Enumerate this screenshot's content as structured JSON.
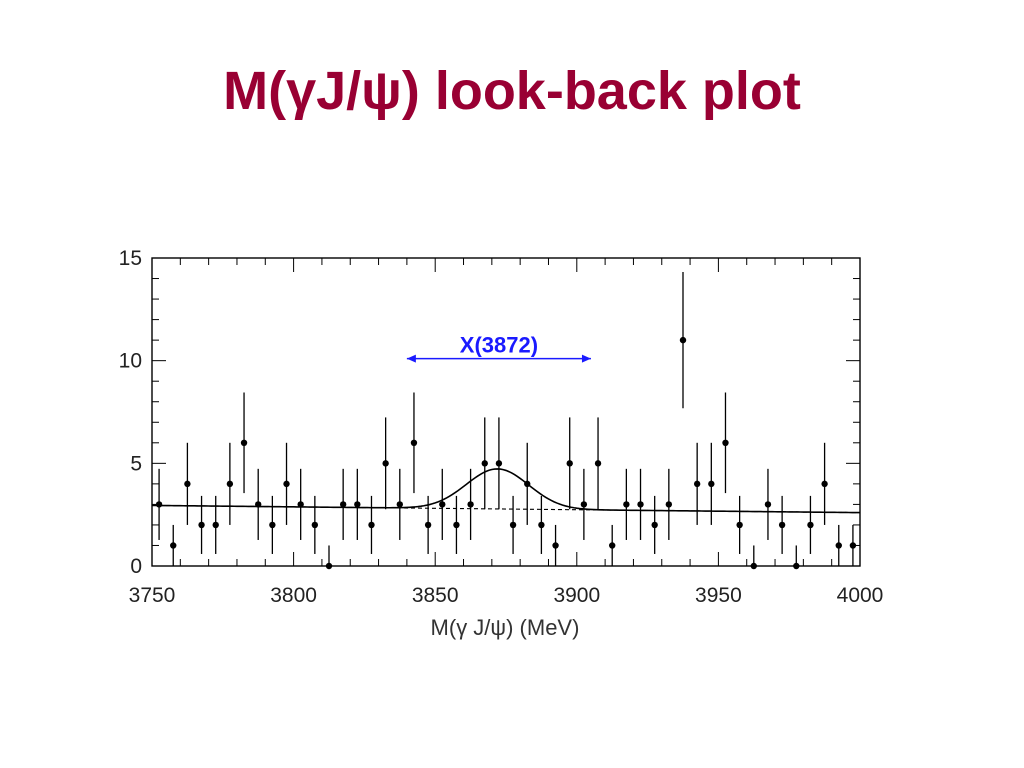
{
  "slide": {
    "title": "M(γJ/ψ) look-back plot",
    "title_color": "#990033"
  },
  "chart_data": {
    "type": "scatter",
    "xlabel": "M(γ J/ψ) (MeV)",
    "ylabel": "",
    "xlim": [
      3750,
      4000
    ],
    "ylim": [
      0,
      15
    ],
    "x_ticks": [
      3750,
      3800,
      3850,
      3900,
      3950,
      4000
    ],
    "y_ticks": [
      0,
      5,
      10,
      15
    ],
    "grid": false,
    "series": [
      {
        "style": "points-with-error-bars",
        "color": "#000000",
        "points": [
          {
            "x": 3752.5,
            "y": 3
          },
          {
            "x": 3757.5,
            "y": 1
          },
          {
            "x": 3762.5,
            "y": 4
          },
          {
            "x": 3767.5,
            "y": 2
          },
          {
            "x": 3772.5,
            "y": 2
          },
          {
            "x": 3777.5,
            "y": 4
          },
          {
            "x": 3782.5,
            "y": 6
          },
          {
            "x": 3787.5,
            "y": 3
          },
          {
            "x": 3792.5,
            "y": 2
          },
          {
            "x": 3797.5,
            "y": 4
          },
          {
            "x": 3802.5,
            "y": 3
          },
          {
            "x": 3807.5,
            "y": 2
          },
          {
            "x": 3812.5,
            "y": 0
          },
          {
            "x": 3817.5,
            "y": 3
          },
          {
            "x": 3822.5,
            "y": 3
          },
          {
            "x": 3827.5,
            "y": 2
          },
          {
            "x": 3832.5,
            "y": 5
          },
          {
            "x": 3837.5,
            "y": 3
          },
          {
            "x": 3842.5,
            "y": 6
          },
          {
            "x": 3847.5,
            "y": 2
          },
          {
            "x": 3852.5,
            "y": 3
          },
          {
            "x": 3857.5,
            "y": 2
          },
          {
            "x": 3862.5,
            "y": 3
          },
          {
            "x": 3867.5,
            "y": 5
          },
          {
            "x": 3872.5,
            "y": 5
          },
          {
            "x": 3877.5,
            "y": 2
          },
          {
            "x": 3882.5,
            "y": 4
          },
          {
            "x": 3887.5,
            "y": 2
          },
          {
            "x": 3892.5,
            "y": 1
          },
          {
            "x": 3897.5,
            "y": 5
          },
          {
            "x": 3902.5,
            "y": 3
          },
          {
            "x": 3907.5,
            "y": 5
          },
          {
            "x": 3912.5,
            "y": 1
          },
          {
            "x": 3917.5,
            "y": 3
          },
          {
            "x": 3922.5,
            "y": 3
          },
          {
            "x": 3927.5,
            "y": 2
          },
          {
            "x": 3932.5,
            "y": 3
          },
          {
            "x": 3937.5,
            "y": 11
          },
          {
            "x": 3942.5,
            "y": 4
          },
          {
            "x": 3947.5,
            "y": 4
          },
          {
            "x": 3952.5,
            "y": 6
          },
          {
            "x": 3957.5,
            "y": 2
          },
          {
            "x": 3962.5,
            "y": 0
          },
          {
            "x": 3967.5,
            "y": 3
          },
          {
            "x": 3972.5,
            "y": 2
          },
          {
            "x": 3977.5,
            "y": 0
          },
          {
            "x": 3982.5,
            "y": 2
          },
          {
            "x": 3987.5,
            "y": 4
          },
          {
            "x": 3992.5,
            "y": 1
          },
          {
            "x": 3997.5,
            "y": 1
          }
        ]
      },
      {
        "style": "solid-curve",
        "description_visible": false,
        "color": "#000000",
        "signal": {
          "mean": 3872,
          "sigma": 11,
          "amplitude": 1.95
        },
        "background": {
          "y_start": 2.95,
          "y_end": 2.6
        }
      },
      {
        "style": "dashed-line",
        "color": "#000000",
        "x": [
          3750,
          4000
        ],
        "y": [
          2.95,
          2.6
        ]
      }
    ],
    "annotations": [
      {
        "text": "X(3872)",
        "color": "#1a1aff",
        "x_from": 3840,
        "x_to": 3905,
        "y": 10.1
      }
    ]
  }
}
